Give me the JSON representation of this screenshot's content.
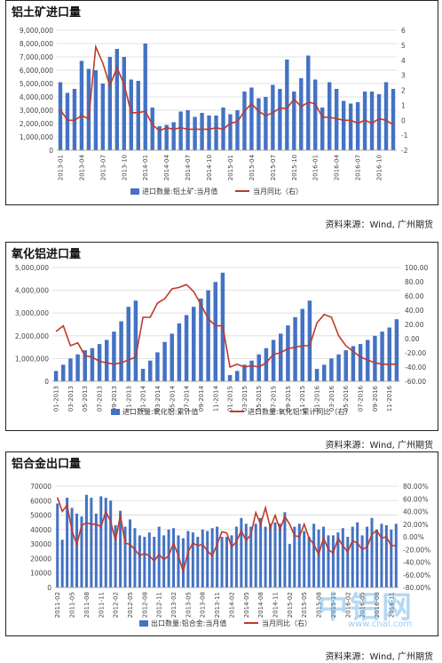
{
  "source_text": "资料来源：Wind, 广州期货",
  "watermark": {
    "logo": "中铝网",
    "site": "www.cnal.com"
  },
  "colors": {
    "bar": "#4472c4",
    "line": "#c0392b",
    "grid": "#d9d9d9"
  },
  "chart_data": [
    {
      "type": "bar",
      "title": "铝土矿进口量",
      "legend": [
        "进口数量:铝土矿:当月值",
        "当月同比（右）"
      ],
      "legend_placement": "bottom",
      "grid": true,
      "categories": [
        "2013-01",
        "2013-02",
        "2013-03",
        "2013-04",
        "2013-05",
        "2013-06",
        "2013-07",
        "2013-08",
        "2013-09",
        "2013-10",
        "2013-11",
        "2013-12",
        "2014-01",
        "2014-02",
        "2014-03",
        "2014-04",
        "2014-05",
        "2014-06",
        "2014-07",
        "2014-08",
        "2014-09",
        "2014-10",
        "2014-11",
        "2014-12",
        "2015-01",
        "2015-02",
        "2015-03",
        "2015-04",
        "2015-05",
        "2015-06",
        "2015-07",
        "2015-08",
        "2015-09",
        "2015-10",
        "2015-11",
        "2015-12",
        "2016-01",
        "2016-02",
        "2016-03",
        "2016-04",
        "2016-05",
        "2016-06",
        "2016-07",
        "2016-08",
        "2016-09",
        "2016-10",
        "2016-11",
        "2016-12"
      ],
      "tick_labels": [
        "2013-01",
        "2013-04",
        "2013-07",
        "2013-10",
        "2014-01",
        "2014-04",
        "2014-07",
        "2014-10",
        "2015-01",
        "2015-04",
        "2015-07",
        "2015-10",
        "2016-01",
        "2016-04",
        "2016-07",
        "2016-10"
      ],
      "tick_every": 3,
      "y_ticks": [
        "0",
        "1,000,000",
        "2,000,000",
        "3,000,000",
        "4,000,000",
        "5,000,000",
        "6,000,000",
        "7,000,000",
        "8,000,000",
        "9,000,000"
      ],
      "y2_ticks": [
        "-2",
        "-1",
        "0",
        "1",
        "2",
        "3",
        "4",
        "5",
        "6"
      ],
      "ylim": [
        0,
        9000000
      ],
      "y2lim": [
        -2,
        6
      ],
      "series": [
        {
          "name": "进口数量:铝土矿:当月值",
          "axis": "left",
          "kind": "bar",
          "values": [
            5100000,
            4300000,
            4600000,
            6700000,
            6100000,
            6000000,
            5000000,
            7000000,
            7600000,
            7000000,
            5300000,
            5200000,
            8000000,
            3200000,
            1800000,
            1900000,
            2100000,
            2900000,
            3000000,
            2500000,
            2800000,
            2600000,
            2600000,
            3200000,
            2700000,
            3000000,
            4400000,
            4700000,
            3900000,
            4000000,
            4900000,
            4600000,
            6800000,
            4400000,
            5400000,
            7100000,
            5300000,
            3200000,
            5100000,
            4600000,
            3700000,
            3500000,
            3600000,
            4400000,
            4400000,
            4200000,
            5100000,
            4600000
          ]
        },
        {
          "name": "当月同比（右）",
          "axis": "right",
          "kind": "line",
          "values": [
            0.7,
            0.0,
            0.0,
            0.3,
            0.1,
            4.9,
            3.8,
            2.3,
            3.5,
            2.4,
            0.5,
            0.5,
            0.6,
            -0.3,
            -0.7,
            -0.5,
            -0.6,
            -0.5,
            -0.6,
            -0.6,
            -0.6,
            -0.6,
            -0.5,
            -0.6,
            -0.2,
            -0.1,
            0.6,
            1.1,
            0.6,
            0.3,
            0.5,
            0.8,
            0.8,
            1.4,
            0.9,
            1.2,
            1.1,
            0.2,
            0.2,
            0.1,
            0.0,
            0.0,
            -0.2,
            0.0,
            -0.2,
            0.1,
            0.0,
            -0.3
          ]
        }
      ]
    },
    {
      "type": "bar",
      "title": "氧化铝进口量",
      "legend": [
        "进口数量:氧化铝:累计值",
        "进口数量:氧化铝:累计同比（右）"
      ],
      "legend_placement": "bottom",
      "grid": true,
      "categories": [
        "01-2013",
        "02-2013",
        "03-2013",
        "04-2013",
        "05-2013",
        "06-2013",
        "07-2013",
        "08-2013",
        "09-2013",
        "10-2013",
        "11-2013",
        "12-2013",
        "01-2014",
        "02-2014",
        "03-2014",
        "04-2014",
        "05-2014",
        "06-2014",
        "07-2014",
        "08-2014",
        "09-2014",
        "10-2014",
        "11-2014",
        "12-2014",
        "01-2015",
        "02-2015",
        "03-2015",
        "04-2015",
        "05-2015",
        "06-2015",
        "07-2015",
        "08-2015",
        "09-2015",
        "10-2015",
        "11-2015",
        "12-2015",
        "01-2016",
        "02-2016",
        "03-2016",
        "04-2016",
        "05-2016",
        "06-2016",
        "07-2016",
        "08-2016",
        "09-2016",
        "10-2016",
        "11-2016",
        "12-2016"
      ],
      "tick_labels": [
        "01-2013",
        "03-2013",
        "05-2013",
        "07-2013",
        "09-2013",
        "11-2013",
        "01-2014",
        "03-2014",
        "05-2014",
        "07-2014",
        "09-2014",
        "11-2014",
        "01-2015",
        "03-2015",
        "05-2015",
        "07-2015",
        "09-2015",
        "11-2015",
        "01-2016",
        "03-2016",
        "05-2016",
        "07-2016",
        "09-2016",
        "11-2016"
      ],
      "tick_every": 2,
      "y_ticks": [
        "0",
        "1,000,000",
        "2,000,000",
        "3,000,000",
        "4,000,000",
        "5,000,000"
      ],
      "y2_ticks": [
        "-60.00",
        "-40.00",
        "-20.00",
        "0.00",
        "20.00",
        "40.00",
        "60.00",
        "80.00",
        "100.00"
      ],
      "ylim": [
        0,
        5500000
      ],
      "y2lim": [
        -60,
        100
      ],
      "series": [
        {
          "name": "进口数量:氧化铝:累计值",
          "axis": "left",
          "kind": "bar",
          "values": [
            500000,
            800000,
            1100000,
            1300000,
            1500000,
            1600000,
            1800000,
            2000000,
            2400000,
            2900000,
            3600000,
            3900000,
            600000,
            1000000,
            1400000,
            1900000,
            2300000,
            2800000,
            3200000,
            3600000,
            4000000,
            4400000,
            4800000,
            5250000,
            300000,
            500000,
            800000,
            1000000,
            1300000,
            1600000,
            2000000,
            2300000,
            2700000,
            3100000,
            3500000,
            3900000,
            600000,
            800000,
            1100000,
            1300000,
            1500000,
            1700000,
            1800000,
            2000000,
            2200000,
            2400000,
            2600000,
            3000000
          ]
        },
        {
          "name": "进口数量:氧化铝:累计同比（右）",
          "axis": "right",
          "kind": "line",
          "values": [
            10,
            18,
            -10,
            -6,
            -24,
            -26,
            -32,
            -34,
            -36,
            -34,
            -30,
            -26,
            30,
            30,
            50,
            56,
            70,
            72,
            76,
            66,
            48,
            28,
            18,
            18,
            -40,
            -36,
            -40,
            -38,
            -40,
            -34,
            -22,
            -20,
            -14,
            -12,
            -10,
            -10,
            22,
            34,
            30,
            4,
            -10,
            -18,
            -26,
            -30,
            -34,
            -36,
            -36,
            -36
          ]
        }
      ]
    },
    {
      "type": "bar",
      "title": "铝合金出口量",
      "legend": [
        "出口数量:铝合金:当月值",
        "当月同比（右）"
      ],
      "legend_placement": "bottom",
      "grid": true,
      "categories": [
        "2011-02",
        "2011-03",
        "2011-04",
        "2011-05",
        "2011-06",
        "2011-07",
        "2011-08",
        "2011-09",
        "2011-10",
        "2011-11",
        "2011-12",
        "2012-01",
        "2012-02",
        "2012-03",
        "2012-04",
        "2012-05",
        "2012-06",
        "2012-07",
        "2012-08",
        "2012-09",
        "2012-10",
        "2012-11",
        "2012-12",
        "2013-01",
        "2013-02",
        "2013-03",
        "2013-04",
        "2013-05",
        "2013-06",
        "2013-07",
        "2013-08",
        "2013-09",
        "2013-10",
        "2013-11",
        "2013-12",
        "2014-01",
        "2014-02",
        "2014-03",
        "2014-04",
        "2014-05",
        "2014-06",
        "2014-07",
        "2014-08",
        "2014-09",
        "2014-10",
        "2014-11",
        "2014-12",
        "2015-01",
        "2015-02",
        "2015-03",
        "2015-04",
        "2015-05",
        "2015-06",
        "2015-07",
        "2015-08",
        "2015-09",
        "2015-10",
        "2015-11",
        "2015-12",
        "2016-01",
        "2016-02",
        "2016-03",
        "2016-04",
        "2016-05",
        "2016-06",
        "2016-07",
        "2016-08",
        "2016-09",
        "2016-10",
        "2016-11",
        "2016-12"
      ],
      "tick_labels": [
        "2011-02",
        "2011-05",
        "2011-08",
        "2011-11",
        "2012-02",
        "2012-05",
        "2012-08",
        "2012-11",
        "2013-02",
        "2013-05",
        "2013-08",
        "2013-11",
        "2014-02",
        "2014-05",
        "2014-08",
        "2014-11",
        "2015-02",
        "2015-05",
        "2015-08",
        "2015-11",
        "2016-02",
        "2016-05",
        "2016-08",
        "2016-11"
      ],
      "tick_every": 3,
      "y_ticks": [
        "0",
        "10000",
        "20000",
        "30000",
        "40000",
        "50000",
        "60000",
        "70000"
      ],
      "y2_ticks": [
        "-80.00%",
        "-60.00%",
        "-40.00%",
        "-20.00%",
        "0.00%",
        "20.00%",
        "40.00%",
        "60.00%",
        "80.00%"
      ],
      "ylim": [
        0,
        70000
      ],
      "y2lim": [
        -80,
        80
      ],
      "series": [
        {
          "name": "出口数量:铝合金:当月值",
          "axis": "left",
          "kind": "bar",
          "values": [
            58000,
            33000,
            62000,
            55000,
            51000,
            49000,
            64000,
            62000,
            51000,
            63000,
            62000,
            60000,
            43000,
            53000,
            42000,
            47000,
            41000,
            36000,
            35000,
            38000,
            35000,
            42000,
            36000,
            40000,
            41000,
            36000,
            34000,
            39000,
            38000,
            35000,
            40000,
            39000,
            41000,
            42000,
            35000,
            35000,
            36000,
            42000,
            48000,
            44000,
            42000,
            44000,
            48000,
            42000,
            44000,
            45000,
            44000,
            52000,
            30000,
            42000,
            44000,
            39000,
            35000,
            44000,
            40000,
            42000,
            36000,
            36000,
            38000,
            41000,
            35000,
            42000,
            45000,
            36000,
            42000,
            48000,
            40000,
            44000,
            43000,
            40000,
            44000
          ]
        },
        {
          "name": "当月同比（右）",
          "axis": "right",
          "kind": "line",
          "values": [
            62,
            40,
            50,
            10,
            -12,
            18,
            22,
            20,
            20,
            16,
            40,
            24,
            -6,
            34,
            -10,
            -12,
            -20,
            -30,
            -26,
            -30,
            -38,
            -28,
            -36,
            -30,
            -10,
            -30,
            -55,
            -24,
            -10,
            -14,
            -12,
            -22,
            -30,
            -12,
            8,
            6,
            -16,
            -8,
            10,
            -6,
            4,
            38,
            20,
            46,
            14,
            34,
            12,
            32,
            20,
            2,
            0,
            20,
            -2,
            -12,
            -28,
            -2,
            -20,
            -26,
            -2,
            -14,
            -24,
            -6,
            -10,
            -20,
            -16,
            4,
            10,
            -2,
            0,
            -14,
            -14
          ]
        }
      ]
    }
  ]
}
